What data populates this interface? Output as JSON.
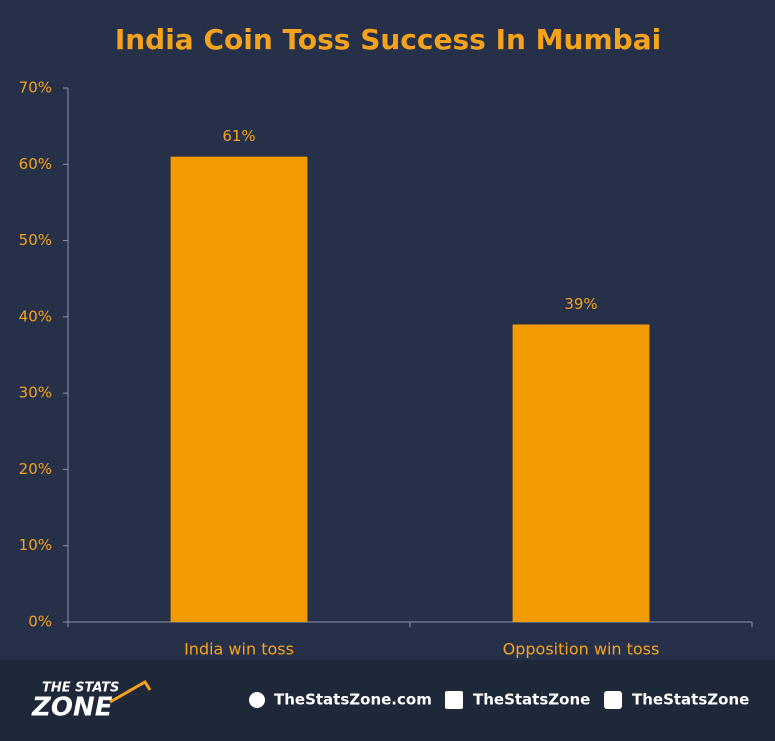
{
  "chart_data": {
    "type": "bar",
    "title": "India Coin Toss Success In Mumbai",
    "categories": [
      "India win toss",
      "Opposition win toss"
    ],
    "values": [
      61,
      39
    ],
    "value_labels": [
      "61%",
      "39%"
    ],
    "color": "#f39a00",
    "ylim": [
      0,
      70
    ],
    "yticks": [
      {
        "value": 0,
        "label": "0%"
      },
      {
        "value": 10,
        "label": "10%"
      },
      {
        "value": 20,
        "label": "20%"
      },
      {
        "value": 30,
        "label": "30%"
      },
      {
        "value": 40,
        "label": "40%"
      },
      {
        "value": 50,
        "label": "50%"
      },
      {
        "value": 60,
        "label": "60%"
      },
      {
        "value": 70,
        "label": "70%"
      }
    ],
    "grid": false
  },
  "footer": {
    "logo_top": "THE STATS",
    "logo_bottom": "ZONE",
    "website": "TheStatsZone.com",
    "facebook": "TheStatsZone",
    "twitter": "TheStatsZone"
  }
}
